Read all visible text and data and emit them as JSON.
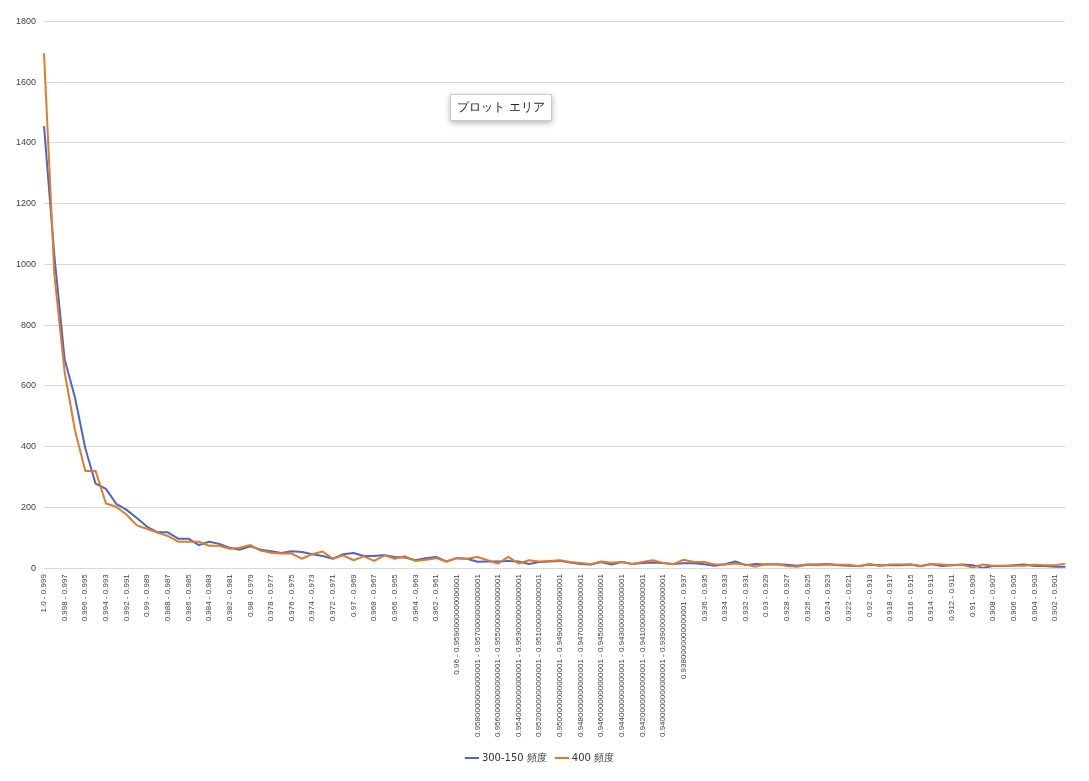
{
  "chart_data": {
    "type": "line",
    "categories": [
      "1.0 - 0.999",
      null,
      "0.998 - 0.997",
      null,
      "0.996 - 0.995",
      null,
      "0.994 - 0.993",
      null,
      "0.992 - 0.991",
      null,
      "0.99 - 0.989",
      null,
      "0.988 - 0.987",
      null,
      "0.986 - 0.985",
      null,
      "0.984 - 0.983",
      null,
      "0.982 - 0.981",
      null,
      "0.98 - 0.979",
      null,
      "0.978 - 0.977",
      null,
      "0.976 - 0.975",
      null,
      "0.974 - 0.973",
      null,
      "0.972 - 0.971",
      null,
      "0.97 - 0.969",
      null,
      "0.968 - 0.967",
      null,
      "0.966 - 0.965",
      null,
      "0.964 - 0.963",
      null,
      "0.962 - 0.961",
      null,
      "0.96 - 0.9590000000000001",
      null,
      "0.9580000000000001 - 0.9570000000000001",
      null,
      "0.9560000000000001 - 0.9550000000000001",
      null,
      "0.9540000000000001 - 0.9530000000000001",
      null,
      "0.9520000000000001 - 0.9510000000000001",
      null,
      "0.9500000000000001 - 0.9490000000000001",
      null,
      "0.9480000000000001 - 0.9470000000000001",
      null,
      "0.9460000000000001 - 0.9450000000000001",
      null,
      "0.9440000000000001 - 0.9430000000000001",
      null,
      "0.9420000000000001 - 0.9410000000000001",
      null,
      "0.9400000000000001 - 0.9390000000000001",
      null,
      "0.9380000000000001 - 0.937",
      null,
      "0.936 - 0.935",
      null,
      "0.934 - 0.933",
      null,
      "0.932 - 0.931",
      null,
      "0.93 - 0.929",
      null,
      "0.928 - 0.927",
      null,
      "0.926 - 0.925",
      null,
      "0.924 - 0.923",
      null,
      "0.922 - 0.921",
      null,
      "0.92 - 0.919",
      null,
      "0.918 - 0.917",
      null,
      "0.916 - 0.915",
      null,
      "0.914 - 0.913",
      null,
      "0.912 - 0.911",
      null,
      "0.91 - 0.909",
      null,
      "0.908 - 0.907",
      null,
      "0.906 - 0.905",
      null,
      "0.904 - 0.903",
      null,
      "0.902 - 0.901",
      null
    ],
    "series": [
      {
        "name": "300-150 頻度",
        "color": "#4a66c8",
        "values": [
          1455,
          1030,
          687,
          562,
          395,
          278,
          261,
          212,
          192,
          165,
          136,
          118,
          118,
          97,
          97,
          76,
          87,
          80,
          67,
          61,
          72,
          61,
          56,
          50,
          56,
          53,
          46,
          40,
          31,
          46,
          50,
          40,
          40,
          43,
          37,
          35,
          26,
          33,
          37,
          22,
          33,
          31,
          21,
          22,
          22,
          24,
          22,
          14,
          20,
          22,
          24,
          19,
          14,
          12,
          20,
          12,
          20,
          14,
          17,
          19,
          17,
          14,
          16,
          16,
          13,
          8,
          13,
          22,
          10,
          14,
          12,
          13,
          11,
          8,
          12,
          12,
          14,
          10,
          8,
          7,
          12,
          10,
          10,
          10,
          12,
          7,
          14,
          7,
          10,
          12,
          10,
          1,
          7,
          7,
          10,
          12,
          7,
          7,
          5,
          5
        ]
      },
      {
        "name": "400 頻度",
        "color": "#e07b28",
        "values": [
          1695,
          967,
          645,
          454,
          320,
          320,
          213,
          202,
          176,
          141,
          129,
          117,
          106,
          87,
          87,
          87,
          74,
          74,
          64,
          67,
          76,
          58,
          51,
          48,
          48,
          31,
          46,
          55,
          31,
          42,
          26,
          39,
          24,
          42,
          31,
          39,
          24,
          28,
          33,
          22,
          33,
          31,
          37,
          26,
          15,
          37,
          15,
          26,
          22,
          24,
          26,
          20,
          17,
          13,
          22,
          18,
          20,
          14,
          20,
          26,
          17,
          13,
          28,
          20,
          20,
          12,
          12,
          15,
          12,
          5,
          14,
          14,
          7,
          5,
          11,
          10,
          12,
          11,
          11,
          6,
          14,
          7,
          12,
          12,
          12,
          6,
          14,
          12,
          10,
          11,
          2,
          12,
          8,
          8,
          8,
          8,
          11,
          10,
          10,
          15
        ]
      }
    ],
    "ylim": [
      0,
      1800
    ],
    "yticks": [
      0,
      200,
      400,
      600,
      800,
      1000,
      1200,
      1400,
      1600,
      1800
    ],
    "grid": "y",
    "legend": "bottom",
    "marker": "none",
    "line_style": "solid",
    "annotations": [
      "プロット エリア"
    ]
  }
}
